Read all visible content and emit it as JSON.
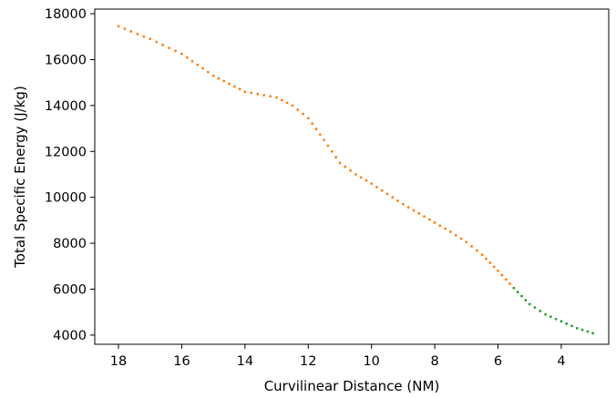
{
  "chart_data": {
    "type": "scatter",
    "xlabel": "Curvilinear Distance (NM)",
    "ylabel": "Total Specific Energy (J/kg)",
    "x_inverted": true,
    "xlim": [
      18.75,
      2.5
    ],
    "ylim": [
      3600,
      18200
    ],
    "xticks": [
      18,
      16,
      14,
      12,
      10,
      8,
      6,
      4
    ],
    "yticks": [
      4000,
      6000,
      8000,
      10000,
      12000,
      14000,
      16000,
      18000
    ],
    "grid": false,
    "series": [
      {
        "color": "#ff7f0e",
        "x": [
          18.0,
          17.0,
          16.0,
          15.0,
          14.0,
          13.0,
          12.5,
          12.0,
          11.5,
          11.0,
          10.5,
          10.0,
          9.5,
          9.0,
          8.5,
          8.0,
          7.5,
          7.0,
          6.5,
          6.0,
          5.5
        ],
        "y": [
          17450,
          16900,
          16250,
          15300,
          14600,
          14350,
          14000,
          13450,
          12500,
          11500,
          11000,
          10600,
          10150,
          9700,
          9300,
          8900,
          8500,
          8050,
          7500,
          6800,
          6050
        ]
      },
      {
        "color": "#2ca02c",
        "x": [
          5.5,
          5.0,
          4.5,
          4.0,
          3.5,
          3.0
        ],
        "y": [
          6050,
          5350,
          4900,
          4600,
          4300,
          4080
        ]
      }
    ]
  }
}
